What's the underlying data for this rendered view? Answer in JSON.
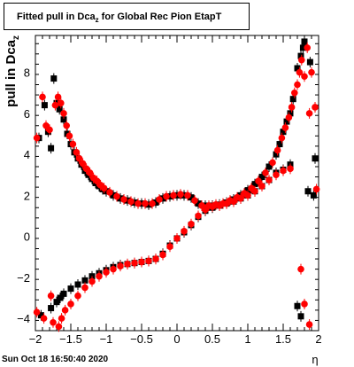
{
  "chart_data": {
    "type": "scatter",
    "title": "Fitted pull in Dca_z for Global Rec Pion EtapT",
    "title_prefix": "Fitted pull in Dca",
    "title_sub": "z",
    "title_suffix": " for Global Rec Pion EtapT",
    "ylabel_main": "pull in Dca",
    "ylabel_sub": "z",
    "xlabel": "η",
    "xlim": [
      -2,
      2
    ],
    "ylim": [
      -4.6,
      9.8
    ],
    "x_ticks": [
      "−2",
      "−1.5",
      "−1",
      "−0.5",
      "0",
      "0.5",
      "1",
      "1.5",
      "2"
    ],
    "y_ticks": [
      "−4",
      "−2",
      "0",
      "2",
      "4",
      "6",
      "8"
    ],
    "colors": {
      "series_a": "#000000",
      "series_b": "#ff0000"
    },
    "series": [
      {
        "color": "#000000",
        "marker": "square",
        "points": [
          [
            -1.95,
            4.8
          ],
          [
            -1.87,
            6.4
          ],
          [
            -1.82,
            5.1
          ],
          [
            -1.78,
            4.3
          ],
          [
            -1.74,
            7.7
          ],
          [
            -1.7,
            6.5
          ],
          [
            -1.66,
            6.2
          ],
          [
            -1.6,
            5.7
          ],
          [
            -1.55,
            5.0
          ],
          [
            -1.5,
            4.5
          ],
          [
            -1.45,
            4.1
          ],
          [
            -1.4,
            3.8
          ],
          [
            -1.35,
            3.5
          ],
          [
            -1.3,
            3.2
          ],
          [
            -1.25,
            3.0
          ],
          [
            -1.2,
            2.8
          ],
          [
            -1.15,
            2.6
          ],
          [
            -1.1,
            2.45
          ],
          [
            -1.05,
            2.3
          ],
          [
            -1.0,
            2.2
          ],
          [
            -0.9,
            2.0
          ],
          [
            -0.8,
            1.85
          ],
          [
            -0.7,
            1.75
          ],
          [
            -0.6,
            1.65
          ],
          [
            -0.5,
            1.6
          ],
          [
            -0.4,
            1.55
          ],
          [
            -0.3,
            1.65
          ],
          [
            -0.2,
            1.85
          ],
          [
            -0.1,
            1.95
          ],
          [
            0.0,
            2.0
          ],
          [
            0.1,
            2.0
          ],
          [
            0.2,
            1.9
          ],
          [
            0.3,
            1.6
          ],
          [
            0.4,
            1.5
          ],
          [
            0.5,
            1.5
          ],
          [
            0.6,
            1.55
          ],
          [
            0.7,
            1.65
          ],
          [
            0.8,
            1.8
          ],
          [
            0.9,
            2.0
          ],
          [
            1.0,
            2.25
          ],
          [
            1.1,
            2.55
          ],
          [
            1.2,
            2.9
          ],
          [
            1.3,
            3.4
          ],
          [
            1.4,
            4.0
          ],
          [
            1.45,
            4.5
          ],
          [
            1.5,
            5.1
          ],
          [
            1.55,
            5.6
          ],
          [
            1.6,
            6.0
          ],
          [
            1.64,
            6.7
          ],
          [
            1.7,
            8.2
          ],
          [
            1.75,
            8.8
          ],
          [
            1.78,
            9.2
          ],
          [
            1.8,
            9.5
          ],
          [
            1.85,
            2.2
          ],
          [
            1.88,
            8.5
          ],
          [
            1.93,
            2.0
          ],
          [
            1.95,
            3.8
          ]
        ],
        "points_lower": [
          [
            -1.92,
            -3.85
          ],
          [
            -1.78,
            -3.5
          ],
          [
            -1.7,
            -3.2
          ],
          [
            -1.65,
            -3.0
          ],
          [
            -1.6,
            -2.8
          ],
          [
            -1.5,
            -2.55
          ],
          [
            -1.4,
            -2.35
          ],
          [
            -1.3,
            -2.15
          ],
          [
            -1.2,
            -1.95
          ],
          [
            -1.1,
            -1.8
          ],
          [
            -1.0,
            -1.65
          ],
          [
            -0.9,
            -1.5
          ],
          [
            -0.8,
            -1.4
          ],
          [
            -0.7,
            -1.35
          ],
          [
            -0.6,
            -1.3
          ],
          [
            -0.5,
            -1.25
          ],
          [
            -0.4,
            -1.2
          ],
          [
            -0.3,
            -1.1
          ],
          [
            -0.2,
            -0.85
          ],
          [
            -0.1,
            -0.45
          ],
          [
            0.0,
            -0.1
          ],
          [
            0.1,
            0.2
          ],
          [
            0.2,
            0.55
          ],
          [
            0.3,
            0.95
          ],
          [
            0.4,
            1.25
          ],
          [
            0.5,
            1.4
          ],
          [
            0.6,
            1.5
          ],
          [
            0.7,
            1.6
          ],
          [
            0.8,
            1.7
          ],
          [
            0.9,
            1.85
          ],
          [
            1.0,
            2.0
          ],
          [
            1.1,
            2.2
          ],
          [
            1.2,
            2.45
          ],
          [
            1.3,
            2.75
          ],
          [
            1.4,
            3.1
          ],
          [
            1.5,
            3.25
          ],
          [
            1.6,
            3.5
          ],
          [
            1.7,
            -3.4
          ],
          [
            1.75,
            -3.9
          ]
        ]
      },
      {
        "color": "#ff0000",
        "marker": "circle/square",
        "points": [
          [
            -1.98,
            4.8
          ],
          [
            -1.9,
            6.8
          ],
          [
            -1.85,
            5.4
          ],
          [
            -1.8,
            5.2
          ],
          [
            -1.72,
            6.4
          ],
          [
            -1.68,
            6.8
          ],
          [
            -1.64,
            6.5
          ],
          [
            -1.6,
            6.0
          ],
          [
            -1.56,
            5.4
          ],
          [
            -1.52,
            4.9
          ],
          [
            -1.47,
            4.5
          ],
          [
            -1.42,
            4.1
          ],
          [
            -1.38,
            3.8
          ],
          [
            -1.33,
            3.55
          ],
          [
            -1.28,
            3.3
          ],
          [
            -1.23,
            3.1
          ],
          [
            -1.18,
            2.85
          ],
          [
            -1.13,
            2.7
          ],
          [
            -1.08,
            2.5
          ],
          [
            -1.03,
            2.35
          ],
          [
            -0.95,
            2.15
          ],
          [
            -0.85,
            1.95
          ],
          [
            -0.75,
            1.8
          ],
          [
            -0.65,
            1.7
          ],
          [
            -0.55,
            1.6
          ],
          [
            -0.45,
            1.6
          ],
          [
            -0.35,
            1.6
          ],
          [
            -0.25,
            1.8
          ],
          [
            -0.15,
            1.95
          ],
          [
            -0.05,
            2.0
          ],
          [
            0.05,
            2.05
          ],
          [
            0.15,
            2.0
          ],
          [
            0.25,
            1.75
          ],
          [
            0.35,
            1.5
          ],
          [
            0.45,
            1.5
          ],
          [
            0.55,
            1.55
          ],
          [
            0.65,
            1.6
          ],
          [
            0.75,
            1.75
          ],
          [
            0.85,
            1.9
          ],
          [
            0.95,
            2.1
          ],
          [
            1.05,
            2.35
          ],
          [
            1.15,
            2.7
          ],
          [
            1.25,
            3.1
          ],
          [
            1.35,
            3.6
          ],
          [
            1.42,
            4.2
          ],
          [
            1.48,
            4.8
          ],
          [
            1.53,
            5.3
          ],
          [
            1.58,
            5.8
          ],
          [
            1.62,
            6.3
          ],
          [
            1.66,
            7.0
          ],
          [
            1.7,
            7.4
          ],
          [
            1.73,
            8.0
          ],
          [
            1.76,
            8.6
          ],
          [
            1.8,
            7.8
          ],
          [
            1.84,
            9.2
          ],
          [
            1.87,
            6.0
          ],
          [
            1.9,
            8.0
          ],
          [
            1.95,
            6.3
          ],
          [
            1.97,
            2.3
          ]
        ],
        "points_lower": [
          [
            -1.98,
            -3.7
          ],
          [
            -1.88,
            -4.0
          ],
          [
            -1.78,
            -2.9
          ],
          [
            -1.75,
            -4.2
          ],
          [
            -1.67,
            -4.4
          ],
          [
            -1.63,
            -4.0
          ],
          [
            -1.58,
            -3.6
          ],
          [
            -1.5,
            -3.3
          ],
          [
            -1.4,
            -2.9
          ],
          [
            -1.3,
            -2.5
          ],
          [
            -1.2,
            -2.2
          ],
          [
            -1.1,
            -1.95
          ],
          [
            -1.0,
            -1.75
          ],
          [
            -0.9,
            -1.6
          ],
          [
            -0.8,
            -1.45
          ],
          [
            -0.7,
            -1.35
          ],
          [
            -0.6,
            -1.3
          ],
          [
            -0.5,
            -1.25
          ],
          [
            -0.4,
            -1.2
          ],
          [
            -0.3,
            -1.1
          ],
          [
            -0.2,
            -0.9
          ],
          [
            -0.1,
            -0.5
          ],
          [
            0.0,
            -0.1
          ],
          [
            0.1,
            0.25
          ],
          [
            0.2,
            0.6
          ],
          [
            0.3,
            1.0
          ],
          [
            0.4,
            1.3
          ],
          [
            0.5,
            1.45
          ],
          [
            0.6,
            1.5
          ],
          [
            0.7,
            1.6
          ],
          [
            0.8,
            1.7
          ],
          [
            0.9,
            1.85
          ],
          [
            1.0,
            2.0
          ],
          [
            1.1,
            2.2
          ],
          [
            1.2,
            2.45
          ],
          [
            1.3,
            2.75
          ],
          [
            1.4,
            3.0
          ],
          [
            1.5,
            3.2
          ],
          [
            1.6,
            3.3
          ],
          [
            1.75,
            -1.6
          ],
          [
            1.8,
            -3.3
          ],
          [
            1.87,
            -4.3
          ]
        ]
      }
    ]
  },
  "footer": {
    "date": "Sun Oct 18 16:50:40 2020"
  }
}
